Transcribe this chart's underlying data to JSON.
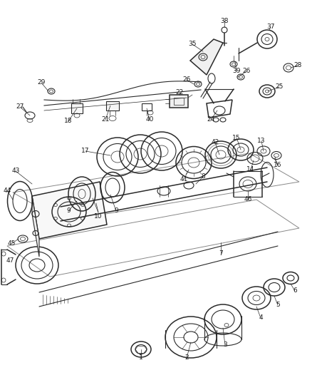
{
  "background_color": "#f5f5f0",
  "line_color": "#2a2a2a",
  "label_color": "#1a1a1a",
  "fig_width": 4.38,
  "fig_height": 5.33,
  "dpi": 100
}
